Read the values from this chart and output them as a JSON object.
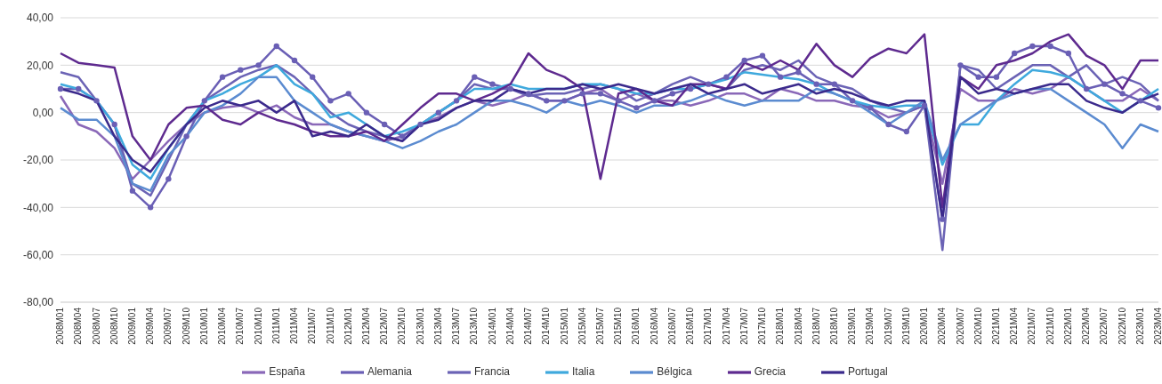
{
  "chart_data": {
    "type": "line",
    "categories": [
      "2008M01",
      "2008M04",
      "2008M07",
      "2008M10",
      "2009M01",
      "2009M04",
      "2009M07",
      "2009M10",
      "2010M01",
      "2010M04",
      "2010M07",
      "2010M10",
      "2011M01",
      "2011M04",
      "2011M07",
      "2011M10",
      "2012M01",
      "2012M04",
      "2012M07",
      "2012M10",
      "2013M01",
      "2013M04",
      "2013M07",
      "2013M10",
      "2014M01",
      "2014M04",
      "2014M07",
      "2014M10",
      "2015M01",
      "2015M04",
      "2015M07",
      "2015M10",
      "2016M01",
      "2016M04",
      "2016M07",
      "2016M10",
      "2017M01",
      "2017M04",
      "2017M07",
      "2017M10",
      "2018M01",
      "2018M04",
      "2018M07",
      "2018M10",
      "2019M01",
      "2019M04",
      "2019M07",
      "2019M10",
      "2020M01",
      "2020M04",
      "2020M07",
      "2020M10",
      "2021M01",
      "2021M04",
      "2021M07",
      "2021M10",
      "2022M01",
      "2022M04",
      "2022M07",
      "2022M10",
      "2023M01",
      "2023M04"
    ],
    "series": [
      {
        "name": "España",
        "color": "#8a68b8",
        "values": [
          7,
          -5,
          -8,
          -15,
          -28,
          -20,
          -12,
          -5,
          0,
          2,
          3,
          0,
          3,
          -2,
          -5,
          -5,
          -8,
          -10,
          -12,
          -10,
          -5,
          -2,
          2,
          5,
          3,
          5,
          8,
          5,
          5,
          8,
          10,
          5,
          8,
          5,
          5,
          3,
          5,
          8,
          8,
          5,
          10,
          8,
          5,
          5,
          3,
          2,
          -2,
          0,
          3,
          -30,
          10,
          5,
          5,
          10,
          8,
          10,
          15,
          10,
          5,
          5,
          10,
          5
        ]
      },
      {
        "name": "Alemania",
        "color": "#6a5fb5",
        "marker": "circle",
        "values": [
          10,
          10,
          5,
          -5,
          -33,
          -40,
          -28,
          -10,
          5,
          15,
          18,
          20,
          28,
          22,
          15,
          5,
          8,
          0,
          -5,
          -10,
          -5,
          0,
          5,
          15,
          12,
          10,
          8,
          5,
          5,
          8,
          8,
          5,
          2,
          5,
          8,
          10,
          12,
          15,
          22,
          24,
          15,
          17,
          12,
          12,
          5,
          2,
          -5,
          -8,
          3,
          -45,
          20,
          15,
          15,
          25,
          28,
          28,
          25,
          10,
          12,
          8,
          5,
          2
        ]
      },
      {
        "name": "Francia",
        "color": "#6b63b5",
        "values": [
          17,
          15,
          5,
          -5,
          -30,
          -35,
          -20,
          -5,
          5,
          10,
          15,
          18,
          20,
          15,
          8,
          0,
          -5,
          -8,
          -10,
          -12,
          -5,
          0,
          5,
          12,
          10,
          10,
          7,
          8,
          8,
          10,
          12,
          10,
          5,
          8,
          12,
          15,
          12,
          10,
          18,
          20,
          18,
          22,
          15,
          12,
          10,
          5,
          2,
          0,
          3,
          -58,
          20,
          18,
          10,
          15,
          20,
          20,
          15,
          20,
          12,
          15,
          12,
          5
        ]
      },
      {
        "name": "Italia",
        "color": "#3fa9dd",
        "values": [
          12,
          10,
          5,
          -5,
          -22,
          -28,
          -15,
          -5,
          5,
          8,
          12,
          15,
          20,
          12,
          8,
          -2,
          0,
          -5,
          -10,
          -8,
          -5,
          0,
          5,
          10,
          10,
          12,
          10,
          10,
          10,
          12,
          12,
          10,
          8,
          8,
          10,
          10,
          12,
          14,
          17,
          16,
          15,
          14,
          12,
          8,
          5,
          3,
          2,
          3,
          3,
          -22,
          -5,
          -5,
          5,
          12,
          18,
          17,
          15,
          10,
          5,
          0,
          5,
          10
        ]
      },
      {
        "name": "Bélgica",
        "color": "#5b8bd0",
        "values": [
          2,
          -3,
          -3,
          -10,
          -30,
          -33,
          -18,
          -10,
          0,
          3,
          8,
          15,
          15,
          5,
          0,
          -5,
          -8,
          -10,
          -12,
          -15,
          -12,
          -8,
          -5,
          0,
          5,
          5,
          3,
          0,
          5,
          3,
          5,
          3,
          0,
          3,
          3,
          5,
          8,
          5,
          3,
          5,
          5,
          5,
          10,
          8,
          5,
          0,
          -5,
          0,
          5,
          -20,
          -5,
          0,
          5,
          8,
          10,
          10,
          5,
          0,
          -5,
          -15,
          -5,
          -8
        ]
      },
      {
        "name": "Grecia",
        "color": "#5e2a8f",
        "values": [
          25,
          21,
          20,
          19,
          -10,
          -20,
          -5,
          2,
          3,
          -3,
          -5,
          0,
          -3,
          -5,
          -8,
          -10,
          -10,
          -8,
          -12,
          -5,
          2,
          8,
          8,
          5,
          8,
          12,
          25,
          18,
          15,
          10,
          -28,
          8,
          10,
          5,
          3,
          12,
          12,
          10,
          21,
          18,
          22,
          18,
          29,
          20,
          15,
          23,
          27,
          25,
          33,
          -40,
          15,
          10,
          20,
          22,
          25,
          30,
          33,
          24,
          20,
          10,
          22,
          22
        ]
      },
      {
        "name": "Portugal",
        "color": "#3b2a8c",
        "values": [
          10,
          8,
          5,
          -10,
          -20,
          -25,
          -15,
          -5,
          2,
          5,
          3,
          5,
          0,
          5,
          -10,
          -8,
          -10,
          -5,
          -10,
          -12,
          -5,
          -3,
          2,
          5,
          5,
          10,
          8,
          10,
          10,
          12,
          10,
          12,
          10,
          8,
          10,
          12,
          8,
          10,
          12,
          8,
          10,
          12,
          8,
          10,
          8,
          5,
          3,
          5,
          5,
          -45,
          15,
          8,
          10,
          8,
          10,
          12,
          12,
          5,
          2,
          0,
          5,
          8
        ]
      }
    ],
    "ylim": [
      -80,
      40
    ],
    "yticks": [
      {
        "value": -80,
        "label": "-80,00"
      },
      {
        "value": -60,
        "label": "-60,00"
      },
      {
        "value": -40,
        "label": "-40,00"
      },
      {
        "value": -20,
        "label": "-20,00"
      },
      {
        "value": 0,
        "label": "0,00"
      },
      {
        "value": 20,
        "label": "20,00"
      },
      {
        "value": 40,
        "label": "40,00"
      }
    ],
    "grid": "y",
    "legend": "bottom",
    "line_style": "solid"
  }
}
